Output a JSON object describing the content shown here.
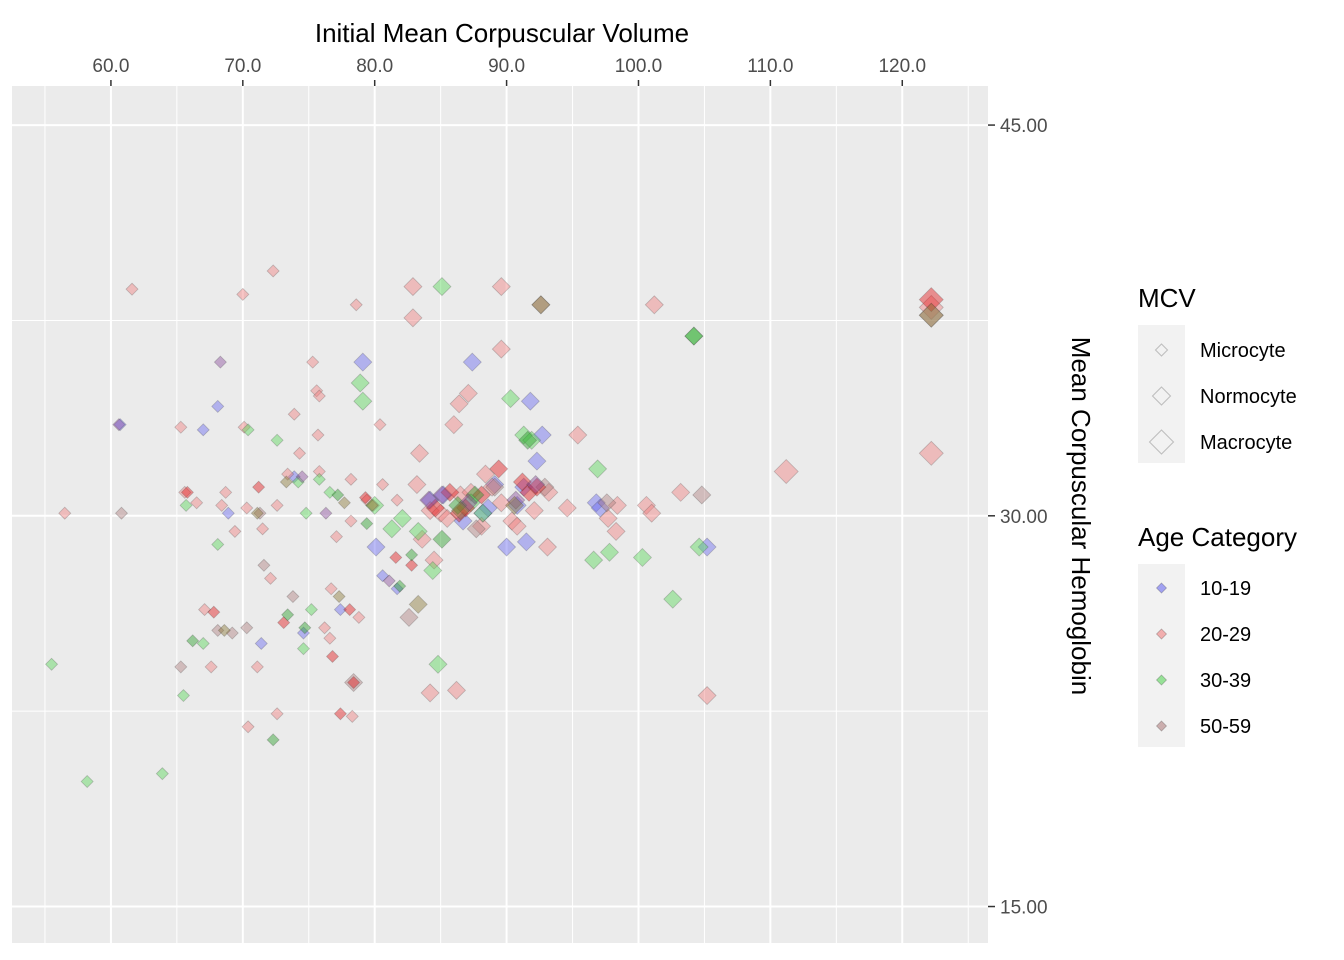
{
  "chart_data": {
    "type": "scatter",
    "xlabel": "Initial Mean Corpuscular Volume",
    "ylabel": "Mean Corpuscular Hemoglobin",
    "x_axis_position": "top",
    "y_axis_position": "right",
    "xlim": [
      52.5,
      126.5
    ],
    "ylim": [
      13.6,
      46.5
    ],
    "x_ticks": [
      60,
      70,
      80,
      90,
      100,
      110,
      120
    ],
    "x_tick_labels": [
      "60.0",
      "70.0",
      "80.0",
      "90.0",
      "100.0",
      "110.0",
      "120.0"
    ],
    "y_ticks": [
      15,
      30,
      45
    ],
    "y_tick_labels": [
      "15.00",
      "30.00",
      "45.00"
    ],
    "grid": true,
    "legend_position": "right",
    "legends": [
      {
        "title": "MCV",
        "encoding": "size",
        "entries": [
          {
            "label": "Microcyte",
            "size": 1
          },
          {
            "label": "Normocyte",
            "size": 2
          },
          {
            "label": "Macrocyte",
            "size": 3
          }
        ]
      },
      {
        "title": "Age Category",
        "encoding": "color",
        "entries": [
          {
            "label": "10-19",
            "color": "#6a6af0"
          },
          {
            "label": "20-29",
            "color": "#f08080"
          },
          {
            "label": "30-39",
            "color": "#5ad65a"
          },
          {
            "label": "50-59",
            "color": "#b08080"
          }
        ]
      }
    ],
    "series": [
      {
        "name": "10-19",
        "color": "#6a6af0",
        "points": [
          [
            60.7,
            33.5,
            1
          ],
          [
            67,
            33.3,
            1
          ],
          [
            68.1,
            34.2,
            1
          ],
          [
            68.9,
            30.1,
            1
          ],
          [
            71.4,
            25.1,
            1
          ],
          [
            73.9,
            31.5,
            1
          ],
          [
            74.6,
            25.5,
            1
          ],
          [
            77.4,
            26.4,
            1
          ],
          [
            79.1,
            35.9,
            2
          ],
          [
            80.1,
            28.8,
            2
          ],
          [
            80.6,
            27.7,
            1
          ],
          [
            81.7,
            27.2,
            1
          ],
          [
            84.2,
            30.6,
            2
          ],
          [
            85.2,
            30.8,
            2
          ],
          [
            86.7,
            29.8,
            2
          ],
          [
            87.4,
            35.9,
            2
          ],
          [
            88.2,
            30.1,
            2
          ],
          [
            88.6,
            30.3,
            2
          ],
          [
            89.1,
            31.2,
            2
          ],
          [
            90,
            28.8,
            2
          ],
          [
            90.8,
            30.4,
            2
          ],
          [
            91.3,
            31.1,
            2
          ],
          [
            91.5,
            29,
            2
          ],
          [
            91.8,
            34.4,
            2
          ],
          [
            92.3,
            32.1,
            2
          ],
          [
            92.7,
            33.1,
            2
          ],
          [
            96.8,
            30.5,
            2
          ],
          [
            97.1,
            30.3,
            2
          ],
          [
            105.2,
            28.8,
            2
          ]
        ]
      },
      {
        "name": "20-29",
        "color": "#f08080",
        "points": [
          [
            56.5,
            30.1,
            1
          ],
          [
            61.6,
            38.7,
            1
          ],
          [
            65.3,
            33.4,
            1
          ],
          [
            65.6,
            30.9,
            1
          ],
          [
            66.5,
            30.5,
            1
          ],
          [
            67.1,
            26.4,
            1
          ],
          [
            67.6,
            24.2,
            1
          ],
          [
            68.4,
            30.4,
            1
          ],
          [
            68.7,
            30.9,
            1
          ],
          [
            69.4,
            29.4,
            1
          ],
          [
            70,
            38.5,
            1
          ],
          [
            70.1,
            33.4,
            1
          ],
          [
            70.3,
            30.3,
            1
          ],
          [
            70.4,
            21.9,
            1
          ],
          [
            71.1,
            24.2,
            1
          ],
          [
            71.5,
            29.5,
            1
          ],
          [
            72.1,
            27.6,
            1
          ],
          [
            72.3,
            39.4,
            1
          ],
          [
            72.6,
            30.4,
            1
          ],
          [
            72.6,
            22.4,
            1
          ],
          [
            73.4,
            31.6,
            1
          ],
          [
            73.9,
            33.9,
            1
          ],
          [
            74.3,
            32.4,
            1
          ],
          [
            75.3,
            35.9,
            1
          ],
          [
            75.6,
            34.8,
            1
          ],
          [
            75.8,
            34.6,
            1
          ],
          [
            75.7,
            33.1,
            1
          ],
          [
            75.8,
            31.7,
            1
          ],
          [
            76.2,
            25.7,
            1
          ],
          [
            76.6,
            25.3,
            1
          ],
          [
            76.7,
            27.2,
            1
          ],
          [
            77.1,
            29.2,
            1
          ],
          [
            78.2,
            31.4,
            1
          ],
          [
            78.2,
            29.8,
            1
          ],
          [
            78.3,
            22.3,
            1
          ],
          [
            78.6,
            38.1,
            1
          ],
          [
            78.8,
            26.1,
            1
          ],
          [
            79.4,
            30.6,
            1
          ],
          [
            79.9,
            30.4,
            1
          ],
          [
            80.4,
            33.5,
            1
          ],
          [
            80.6,
            31.2,
            1
          ],
          [
            81.7,
            30.6,
            1
          ],
          [
            82.9,
            38.8,
            2
          ],
          [
            82.9,
            37.6,
            2
          ],
          [
            83.2,
            31.2,
            2
          ],
          [
            83.4,
            32.4,
            2
          ],
          [
            83.6,
            29.1,
            2
          ],
          [
            84.2,
            30.2,
            2
          ],
          [
            84.2,
            23.2,
            2
          ],
          [
            84.5,
            28.3,
            2
          ],
          [
            85,
            30.1,
            2
          ],
          [
            85.5,
            29.9,
            2
          ],
          [
            86,
            33.5,
            2
          ],
          [
            86.4,
            34.3,
            2
          ],
          [
            86.2,
            23.3,
            2
          ],
          [
            86.5,
            30.8,
            2
          ],
          [
            87.1,
            34.7,
            2
          ],
          [
            87.3,
            30.9,
            2
          ],
          [
            88.1,
            29.6,
            2
          ],
          [
            88.4,
            31.6,
            2
          ],
          [
            88.9,
            31.1,
            2
          ],
          [
            89.6,
            38.8,
            2
          ],
          [
            89.6,
            36.4,
            2
          ],
          [
            89.6,
            30.5,
            2
          ],
          [
            90.4,
            29.8,
            2
          ],
          [
            90.8,
            29.6,
            2
          ],
          [
            92.1,
            30.2,
            2
          ],
          [
            93.1,
            28.8,
            2
          ],
          [
            93.2,
            30.9,
            2
          ],
          [
            94.6,
            30.3,
            2
          ],
          [
            95.4,
            33.1,
            2
          ],
          [
            97.7,
            29.9,
            2
          ],
          [
            98.3,
            29.4,
            2
          ],
          [
            98.4,
            30.4,
            2
          ],
          [
            100.6,
            30.4,
            2
          ],
          [
            101,
            30.1,
            2
          ],
          [
            101.2,
            38.1,
            2
          ],
          [
            103.2,
            30.9,
            2
          ],
          [
            111.2,
            31.7,
            3
          ],
          [
            122.2,
            38,
            3
          ],
          [
            122.2,
            32.4,
            3
          ],
          [
            105.2,
            23.1,
            2
          ]
        ]
      },
      {
        "name": "30-39",
        "color": "#5ad65a",
        "points": [
          [
            55.5,
            24.3,
            1
          ],
          [
            58.2,
            19.8,
            1
          ],
          [
            63.9,
            20.1,
            1
          ],
          [
            65.5,
            23.1,
            1
          ],
          [
            65.7,
            30.4,
            1
          ],
          [
            67,
            25.1,
            1
          ],
          [
            68.1,
            28.9,
            1
          ],
          [
            70.4,
            33.3,
            1
          ],
          [
            72.6,
            32.9,
            1
          ],
          [
            74.2,
            31.3,
            1
          ],
          [
            74.6,
            24.9,
            1
          ],
          [
            74.8,
            30.1,
            1
          ],
          [
            75.2,
            26.4,
            1
          ],
          [
            75.8,
            31.4,
            1
          ],
          [
            76.6,
            30.9,
            1
          ],
          [
            78.9,
            35.1,
            2
          ],
          [
            79.1,
            34.4,
            2
          ],
          [
            80,
            30.4,
            2
          ],
          [
            81.3,
            29.5,
            2
          ],
          [
            82.1,
            29.9,
            2
          ],
          [
            83.3,
            29.4,
            2
          ],
          [
            84.4,
            27.9,
            2
          ],
          [
            84.8,
            24.3,
            2
          ],
          [
            85.1,
            38.8,
            2
          ],
          [
            87.3,
            30.5,
            2
          ],
          [
            88.2,
            30.1,
            2
          ],
          [
            90.3,
            34.5,
            2
          ],
          [
            91.3,
            33.1,
            2
          ],
          [
            91.9,
            32.9,
            2
          ],
          [
            96.9,
            31.8,
            2
          ],
          [
            96.6,
            28.3,
            2
          ],
          [
            97.8,
            28.6,
            2
          ],
          [
            100.3,
            28.4,
            2
          ],
          [
            102.6,
            26.8,
            2
          ],
          [
            104.2,
            36.9,
            2
          ],
          [
            104.6,
            28.8,
            2
          ]
        ]
      },
      {
        "name": "50-59",
        "color": "#b08080",
        "points": [
          [
            60.8,
            30.1,
            1
          ],
          [
            65.3,
            24.2,
            1
          ],
          [
            68.1,
            25.6,
            1
          ],
          [
            69.2,
            25.5,
            1
          ],
          [
            70.3,
            25.7,
            1
          ],
          [
            71.3,
            30.1,
            1
          ],
          [
            71.6,
            28.1,
            1
          ],
          [
            73.8,
            26.9,
            1
          ],
          [
            78.4,
            23.6,
            2
          ],
          [
            82.6,
            26.1,
            2
          ],
          [
            87.7,
            29.5,
            2
          ],
          [
            89.1,
            31.1,
            2
          ],
          [
            92.6,
            38.1,
            2
          ],
          [
            92.9,
            31.1,
            2
          ],
          [
            97.6,
            30.5,
            2
          ],
          [
            104.8,
            30.8,
            2
          ],
          [
            122.2,
            37.7,
            3
          ]
        ]
      },
      {
        "name": "",
        "color": "#e31a1c",
        "points": [
          [
            65.8,
            30.9,
            1
          ],
          [
            67.8,
            26.3,
            1
          ],
          [
            71.2,
            31.1,
            1
          ],
          [
            73.1,
            25.9,
            1
          ],
          [
            76.8,
            24.6,
            1
          ],
          [
            77.4,
            22.4,
            1
          ],
          [
            78.1,
            26.4,
            1
          ],
          [
            78.4,
            23.6,
            1
          ],
          [
            79.3,
            30.7,
            1
          ],
          [
            81.6,
            28.4,
            1
          ],
          [
            82.8,
            28.1,
            1
          ],
          [
            85.7,
            30.9,
            2
          ],
          [
            86.4,
            30.1,
            2
          ],
          [
            88.1,
            30.8,
            2
          ],
          [
            89.4,
            31.8,
            2
          ],
          [
            91.2,
            31.3,
            2
          ],
          [
            91.7,
            30.9,
            2
          ],
          [
            92.3,
            31.1,
            2
          ],
          [
            122.2,
            38.3,
            3
          ],
          [
            86.9,
            30.3,
            2
          ],
          [
            84.6,
            30.3,
            2
          ]
        ]
      },
      {
        "name": "",
        "color": "#2ca02c",
        "points": [
          [
            66.2,
            25.2,
            1
          ],
          [
            72.3,
            21.4,
            1
          ],
          [
            73.4,
            26.2,
            1
          ],
          [
            74.7,
            25.7,
            1
          ],
          [
            77.2,
            30.8,
            1
          ],
          [
            79.4,
            29.7,
            1
          ],
          [
            81.9,
            27.3,
            1
          ],
          [
            82.8,
            28.5,
            1
          ],
          [
            85.1,
            29.1,
            2
          ],
          [
            86.3,
            30.4,
            2
          ],
          [
            87.6,
            30.8,
            2
          ],
          [
            91.6,
            32.9,
            2
          ],
          [
            104.2,
            36.9,
            2
          ]
        ]
      },
      {
        "name": "",
        "color": "#8b4f9e",
        "points": [
          [
            60.6,
            33.5,
            1
          ],
          [
            68.3,
            35.9,
            1
          ],
          [
            74.5,
            31.5,
            1
          ],
          [
            76.3,
            30.1,
            1
          ],
          [
            81.1,
            27.5,
            1
          ],
          [
            84.1,
            30.6,
            2
          ],
          [
            85.1,
            30.8,
            2
          ],
          [
            87.1,
            30.5,
            2
          ],
          [
            90.7,
            30.6,
            2
          ],
          [
            92.2,
            31.2,
            2
          ]
        ]
      },
      {
        "name": "",
        "color": "#8b7a3a",
        "points": [
          [
            68.6,
            25.6,
            1
          ],
          [
            71.1,
            30.1,
            1
          ],
          [
            73.3,
            31.3,
            1
          ],
          [
            77.3,
            26.9,
            1
          ],
          [
            77.7,
            30.5,
            1
          ],
          [
            79.8,
            30.4,
            1
          ],
          [
            83.3,
            26.6,
            2
          ],
          [
            86.5,
            30.2,
            2
          ],
          [
            90.6,
            30.4,
            2
          ],
          [
            92.6,
            38.1,
            2
          ],
          [
            122.2,
            37.7,
            3
          ]
        ]
      }
    ]
  }
}
